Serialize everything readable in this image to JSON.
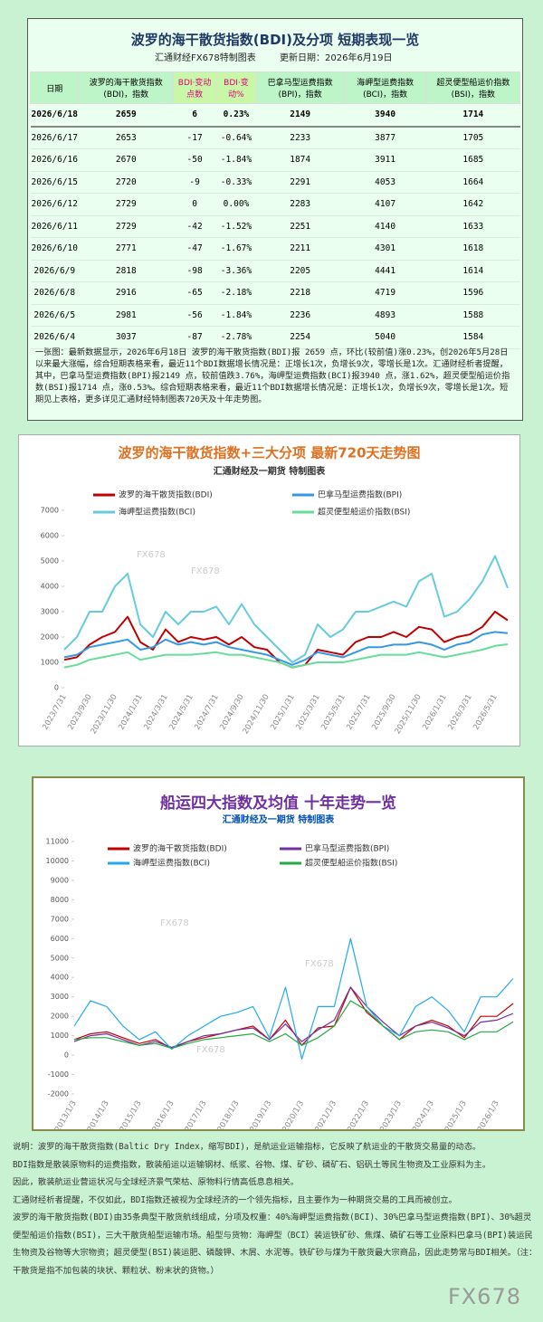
{
  "header": {
    "title": "波罗的海干散货指数(BDI)及分项  短期表现一览",
    "maker": "汇通财经FX678特制图表",
    "updated": "更新日期：2026年6月19日"
  },
  "table": {
    "columns": [
      "日期",
      "波罗的海干散货指数(BDI)，指数",
      "BDI·变动点数",
      "BDI·变动%",
      "巴拿马型运费指数(BPI)，指数",
      "海岬型运费指数(BCI)，指数",
      "超灵便型船运价指数(BSI)，指数"
    ],
    "rows": [
      [
        "2026/6/18",
        "2659",
        "6",
        "0.23%",
        "2149",
        "3940",
        "1714"
      ],
      [
        "2026/6/17",
        "2653",
        "-17",
        "-0.64%",
        "2233",
        "3877",
        "1705"
      ],
      [
        "2026/6/16",
        "2670",
        "-50",
        "-1.84%",
        "1874",
        "3911",
        "1685"
      ],
      [
        "2026/6/15",
        "2720",
        "-9",
        "-0.33%",
        "2291",
        "4053",
        "1664"
      ],
      [
        "2026/6/12",
        "2729",
        "0",
        "0.00%",
        "2283",
        "4107",
        "1642"
      ],
      [
        "2026/6/11",
        "2729",
        "-42",
        "-1.52%",
        "2251",
        "4140",
        "1633"
      ],
      [
        "2026/6/10",
        "2771",
        "-47",
        "-1.67%",
        "2211",
        "4301",
        "1618"
      ],
      [
        "2026/6/9",
        "2818",
        "-98",
        "-3.36%",
        "2205",
        "4441",
        "1614"
      ],
      [
        "2026/6/8",
        "2916",
        "-65",
        "-2.18%",
        "2218",
        "4719",
        "1596"
      ],
      [
        "2026/6/5",
        "2981",
        "-56",
        "-1.84%",
        "2236",
        "4893",
        "1588"
      ],
      [
        "2026/6/4",
        "3037",
        "-87",
        "-2.78%",
        "2254",
        "5040",
        "1584"
      ]
    ]
  },
  "summary": "一张图：最新数据显示，2026年6月18日 波罗的海干散货指数(BDI)报 2659 点，环比(较前值)涨0.23%，创2026年5月28日以来最大涨幅，综合短期表格来看，最近11个BDI数据增长情况是：正增长1次，负增长9次，零增长是1次。汇通财经析者提醒，其中，巴拿马型运费指数(BPI)报2149 点，较前值跌3.76%，海岬型运费指数(BCI)报3940 点，涨1.62%，超灵便型船运价指数(BSI)报1714 点，涨0.53%。综合短期表格来看，最近11个BDI数据增长情况是：正增长1次，负增长9次，零增长是1次。短期见上表格，更多详见汇通财经特制图表720天及十年走势图。",
  "chart_data": [
    {
      "type": "line",
      "title": "波罗的海干散货指数+三大分项  最新720天走势图",
      "subtitle": "汇通财经及一期货 特制图表",
      "grid": false,
      "categories": [
        "2023/7/31",
        null,
        "2023/9/30",
        null,
        "2023/11/30",
        null,
        "2024/1/31",
        null,
        "2024/3/31",
        null,
        "2024/5/31",
        null,
        "2024/7/31",
        null,
        "2024/9/30",
        null,
        "2024/11/30",
        null,
        "2025/1/31",
        null,
        "2025/3/31",
        null,
        "2025/5/31",
        null,
        "2025/7/31",
        null,
        "2025/9/30",
        null,
        "2025/11/30",
        null,
        "2026/1/31",
        null,
        "2026/3/31",
        null,
        "2026/5/31",
        null
      ],
      "ylim": [
        0,
        7000
      ],
      "yticks": [
        0,
        1000,
        2000,
        3000,
        4000,
        5000,
        6000,
        7000
      ],
      "series": [
        {
          "name": "波罗的海干散货指数(BDI)",
          "color": "#c00000",
          "values": [
            1100,
            1200,
            1700,
            2000,
            2200,
            2800,
            1800,
            1500,
            2300,
            1800,
            2000,
            1900,
            2000,
            1700,
            2000,
            1600,
            1500,
            1000,
            800,
            900,
            1500,
            1400,
            1300,
            1800,
            2000,
            2000,
            2200,
            2000,
            2400,
            2300,
            1800,
            2000,
            2100,
            2400,
            3000,
            2659
          ]
        },
        {
          "name": "巴拿马型运费指数(BPI)",
          "color": "#3399e6",
          "values": [
            1200,
            1300,
            1600,
            1700,
            1800,
            1900,
            1500,
            1600,
            1900,
            1700,
            1800,
            1700,
            1800,
            1600,
            1500,
            1400,
            1300,
            1100,
            900,
            1100,
            1400,
            1300,
            1200,
            1400,
            1600,
            1600,
            1700,
            1700,
            1800,
            1700,
            1500,
            1700,
            1800,
            2100,
            2200,
            2149
          ]
        },
        {
          "name": "海岬型运费指数(BCI)",
          "color": "#66ccdd",
          "values": [
            1500,
            2000,
            3000,
            3000,
            4000,
            4500,
            2500,
            2000,
            3000,
            2500,
            3000,
            3000,
            3200,
            2500,
            3300,
            2500,
            2000,
            1500,
            1000,
            1300,
            2500,
            2000,
            2300,
            3000,
            3000,
            3200,
            3400,
            3200,
            4200,
            4500,
            2800,
            3000,
            3500,
            4200,
            5200,
            3940
          ]
        },
        {
          "name": "超灵便型船运价指数(BSI)",
          "color": "#66dd99",
          "values": [
            800,
            900,
            1100,
            1200,
            1300,
            1400,
            1100,
            1200,
            1300,
            1300,
            1300,
            1350,
            1400,
            1300,
            1300,
            1200,
            1100,
            1000,
            800,
            900,
            1000,
            1000,
            1000,
            1100,
            1200,
            1300,
            1300,
            1300,
            1400,
            1300,
            1200,
            1300,
            1400,
            1500,
            1650,
            1714
          ]
        }
      ]
    },
    {
      "type": "line",
      "title": "船运四大指数及均值 十年走势一览",
      "subtitle": "汇通财经及一期货 特制图表",
      "grid": false,
      "categories": [
        "2013/1/3",
        null,
        "2014/1/3",
        null,
        "2015/1/3",
        null,
        "2016/1/3",
        null,
        "2017/1/3",
        null,
        "2018/1/3",
        null,
        "2019/1/3",
        null,
        "2020/1/3",
        null,
        "2021/1/3",
        null,
        "2022/1/3",
        null,
        "2023/1/3",
        null,
        "2024/1/3",
        null,
        "2025/1/3",
        null,
        "2026/1/3",
        null
      ],
      "ylim": [
        -2000,
        11000
      ],
      "yticks": [
        -2000,
        -1000,
        0,
        1000,
        2000,
        3000,
        4000,
        5000,
        6000,
        7000,
        8000,
        9000,
        10000,
        11000
      ],
      "series": [
        {
          "name": "波罗的海干散货指数(BDI)",
          "color": "#c00000",
          "values": [
            800,
            1100,
            1200,
            900,
            600,
            800,
            350,
            700,
            900,
            1100,
            1300,
            1500,
            800,
            1800,
            500,
            1400,
            1500,
            3500,
            2200,
            1500,
            800,
            1500,
            1800,
            1500,
            900,
            2000,
            2000,
            2659
          ]
        },
        {
          "name": "巴拿马型运费指数(BPI)",
          "color": "#7030a0",
          "values": [
            700,
            1000,
            1100,
            800,
            500,
            700,
            400,
            700,
            1000,
            1100,
            1300,
            1400,
            800,
            1600,
            700,
            1300,
            1800,
            3500,
            2500,
            1700,
            1000,
            1500,
            1700,
            1400,
            1000,
            1700,
            1800,
            2149
          ]
        },
        {
          "name": "海岬型运费指数(BCI)",
          "color": "#22aaee",
          "values": [
            1500,
            2800,
            2500,
            1500,
            800,
            1200,
            300,
            1000,
            1500,
            2000,
            2200,
            2500,
            900,
            3500,
            -200,
            2500,
            2500,
            6000,
            2500,
            1500,
            1000,
            2500,
            3000,
            2300,
            1200,
            3000,
            3000,
            3940
          ]
        },
        {
          "name": "超灵便型船运价指数(BSI)",
          "color": "#22aa44",
          "values": [
            800,
            900,
            900,
            700,
            500,
            600,
            350,
            600,
            800,
            900,
            1000,
            1100,
            700,
            1100,
            500,
            900,
            1500,
            2800,
            2300,
            1500,
            800,
            1200,
            1300,
            1200,
            800,
            1200,
            1200,
            1714
          ]
        }
      ]
    }
  ],
  "notes": [
    "说明：波罗的海干散货指数(Baltic Dry Index，缩写BDI)，是航运业运输指标，它反映了航运业的干散货交易量的动态。",
    "BDI指数是散装原物料的运费指数，散装船运以运输钢材、纸浆、谷物、煤、矿砂、磷矿石、铝矾土等民生物资及工业原料为主。",
    "因此，散装航运业营运状况与全球经济景气荣枯、原物料行情高低息息相关。",
    "汇通财经析者提醒，不仅如此，BDI指数还被视为全球经济的一个领先指标，且主要作为一种期货交易的工具而被创立。",
    "波罗的海干散货指数(BDI)由35条典型干散货航线组成，分项及权重：40%海岬型运费指数(BCI)、30%巴拿马型运费指数(BPI)、30%超灵便型船运价指数(BSI)，三大干散货船型运输市场。船型与货物：海岬型（BCI）装运铁矿砂、焦煤、磷矿石等工业原料巴拿马(BPI)装运民生物资及谷物等大宗物资；超灵便型(BSI)装运肥、磷酸钾、木屑、水泥等。铁矿砂与煤为干散货最大宗商品，因此走势常与BDI相关。（注：干散货是指不加包装的块状、颗粒状、粉末状的货物。）"
  ],
  "watermark": "FX678"
}
